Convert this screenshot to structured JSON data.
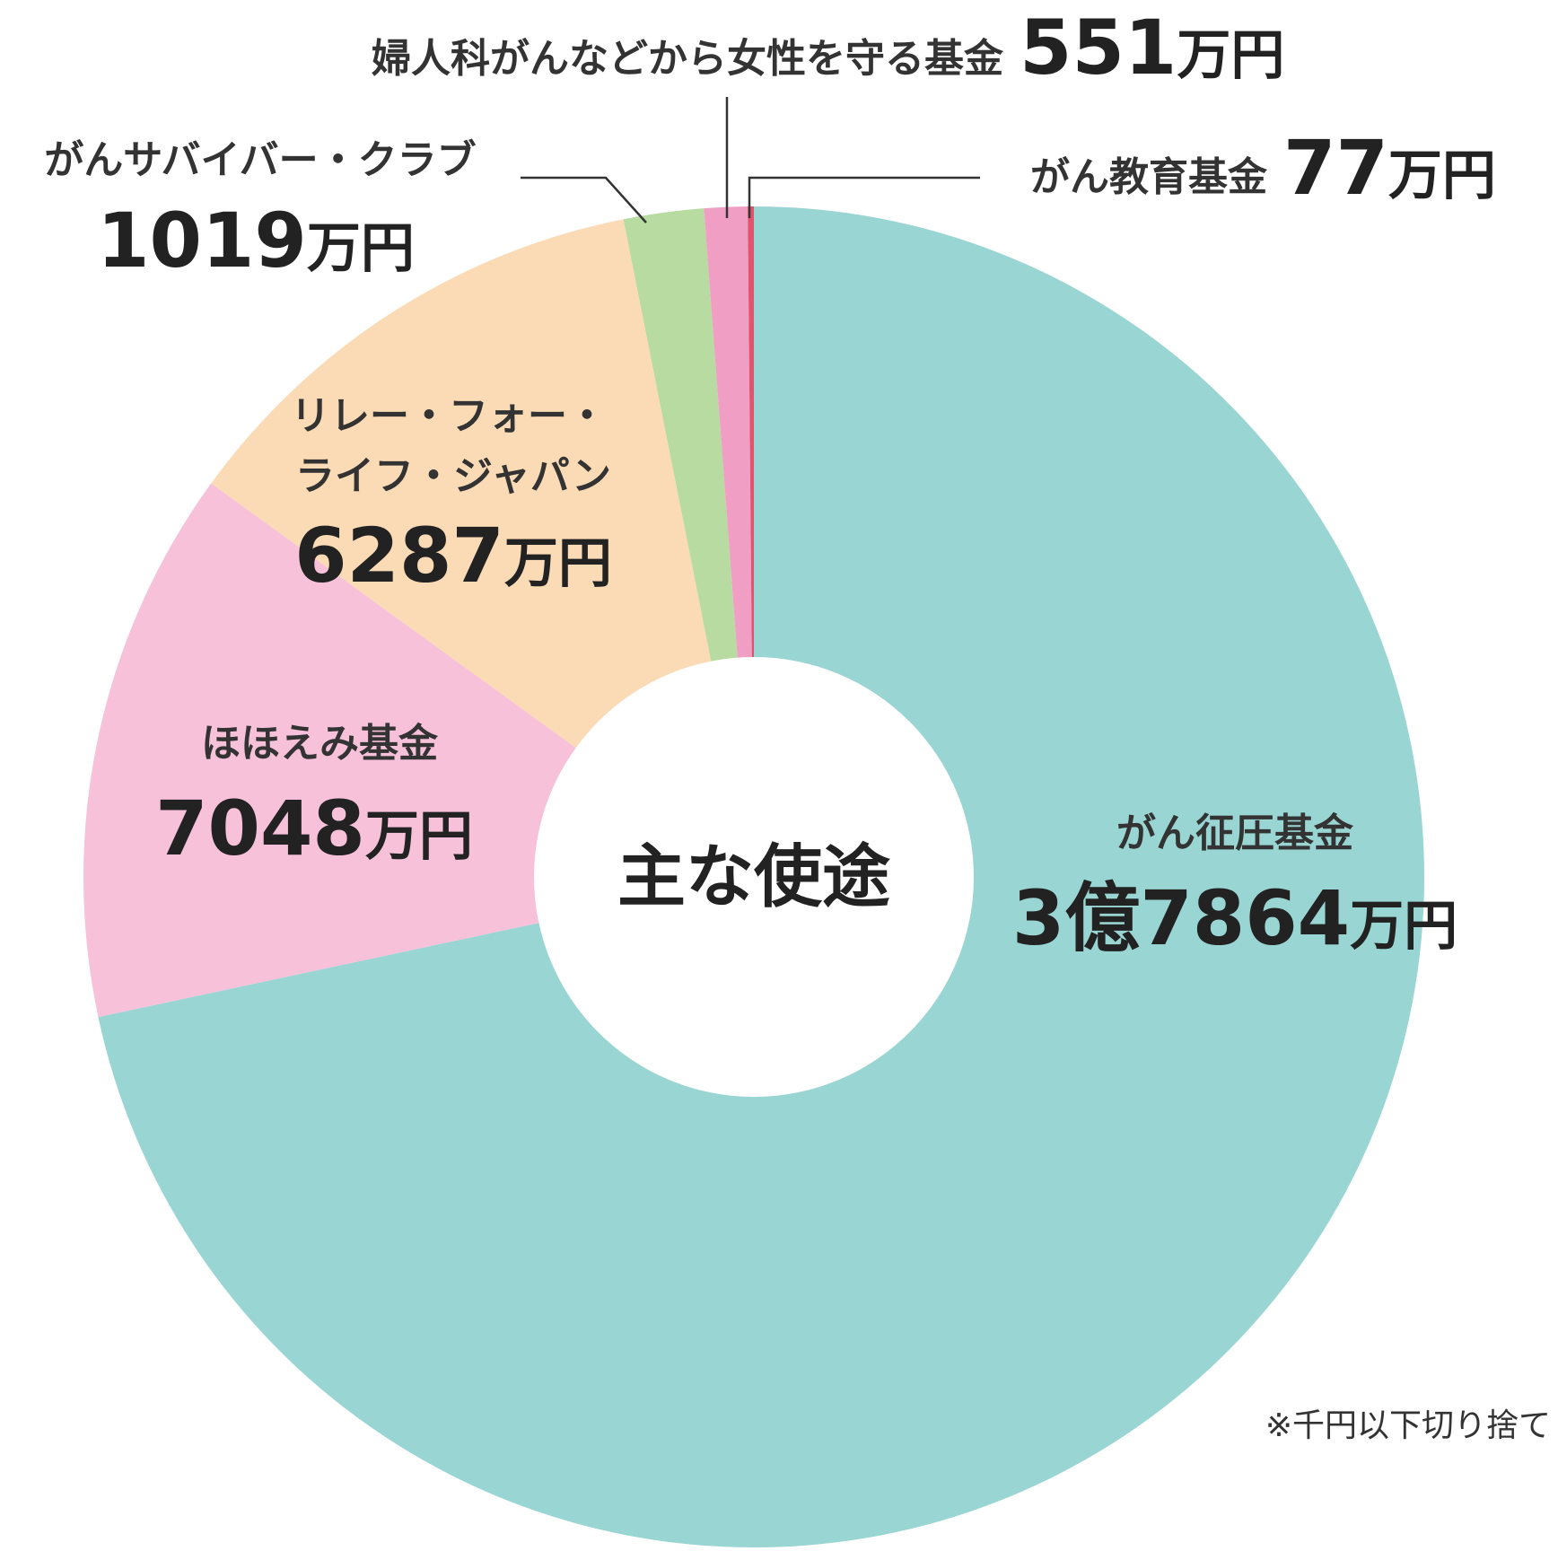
{
  "chart_data": {
    "type": "pie",
    "donut": true,
    "center_label": "主な使途",
    "unit": "万円",
    "series": [
      {
        "name": "がん征圧基金",
        "amount_label": "3億7864",
        "value": 37864,
        "color": "#99d5d3"
      },
      {
        "name": "ほほえみ基金",
        "amount_label": "7048",
        "value": 7048,
        "color": "#f6c1d9"
      },
      {
        "name": "リレー・フォー・ライフ・ジャパン",
        "name_lines": [
          "リレー・フォー・",
          "ライフ・ジャパン"
        ],
        "amount_label": "6287",
        "value": 6287,
        "color": "#fbdbb5"
      },
      {
        "name": "がんサバイバー・クラブ",
        "amount_label": "1019",
        "value": 1019,
        "color": "#b7dba0"
      },
      {
        "name": "婦人科がんなどから女性を守る基金",
        "amount_label": "551",
        "value": 551,
        "color": "#f19ec5"
      },
      {
        "name": "がん教育基金",
        "amount_label": "77",
        "value": 77,
        "color": "#e2536d"
      }
    ],
    "note": "※千円以下切り捨て"
  }
}
